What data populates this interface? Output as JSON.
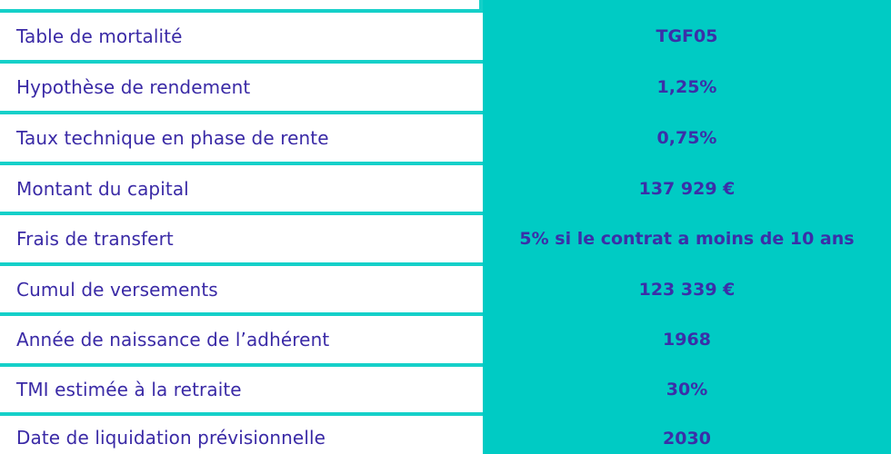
{
  "rows": [
    {
      "label": "Table de mortalité",
      "value": "TGF05"
    },
    {
      "label": "Hypothèse de rendement",
      "value": "1,25%"
    },
    {
      "label": "Taux technique en phase de rente",
      "value": "0,75%"
    },
    {
      "label": "Montant du capital",
      "value": "137 929 €"
    },
    {
      "label": "Frais de transfert",
      "value": "5% si le contrat  a moins de 10 ans"
    },
    {
      "label": "Cumul de versements",
      "value": "123 339 €"
    },
    {
      "label": "Année de naissance de l’adhérent",
      "value": "1968"
    },
    {
      "label": "TMI estimée à la retraite",
      "value": "30%"
    },
    {
      "label": "Date de liquidation prévisionnelle",
      "value": "2030"
    }
  ],
  "colors": {
    "accent_teal": "#00cbc4",
    "text_purple": "#3a2aa6",
    "background": "#ffffff"
  }
}
